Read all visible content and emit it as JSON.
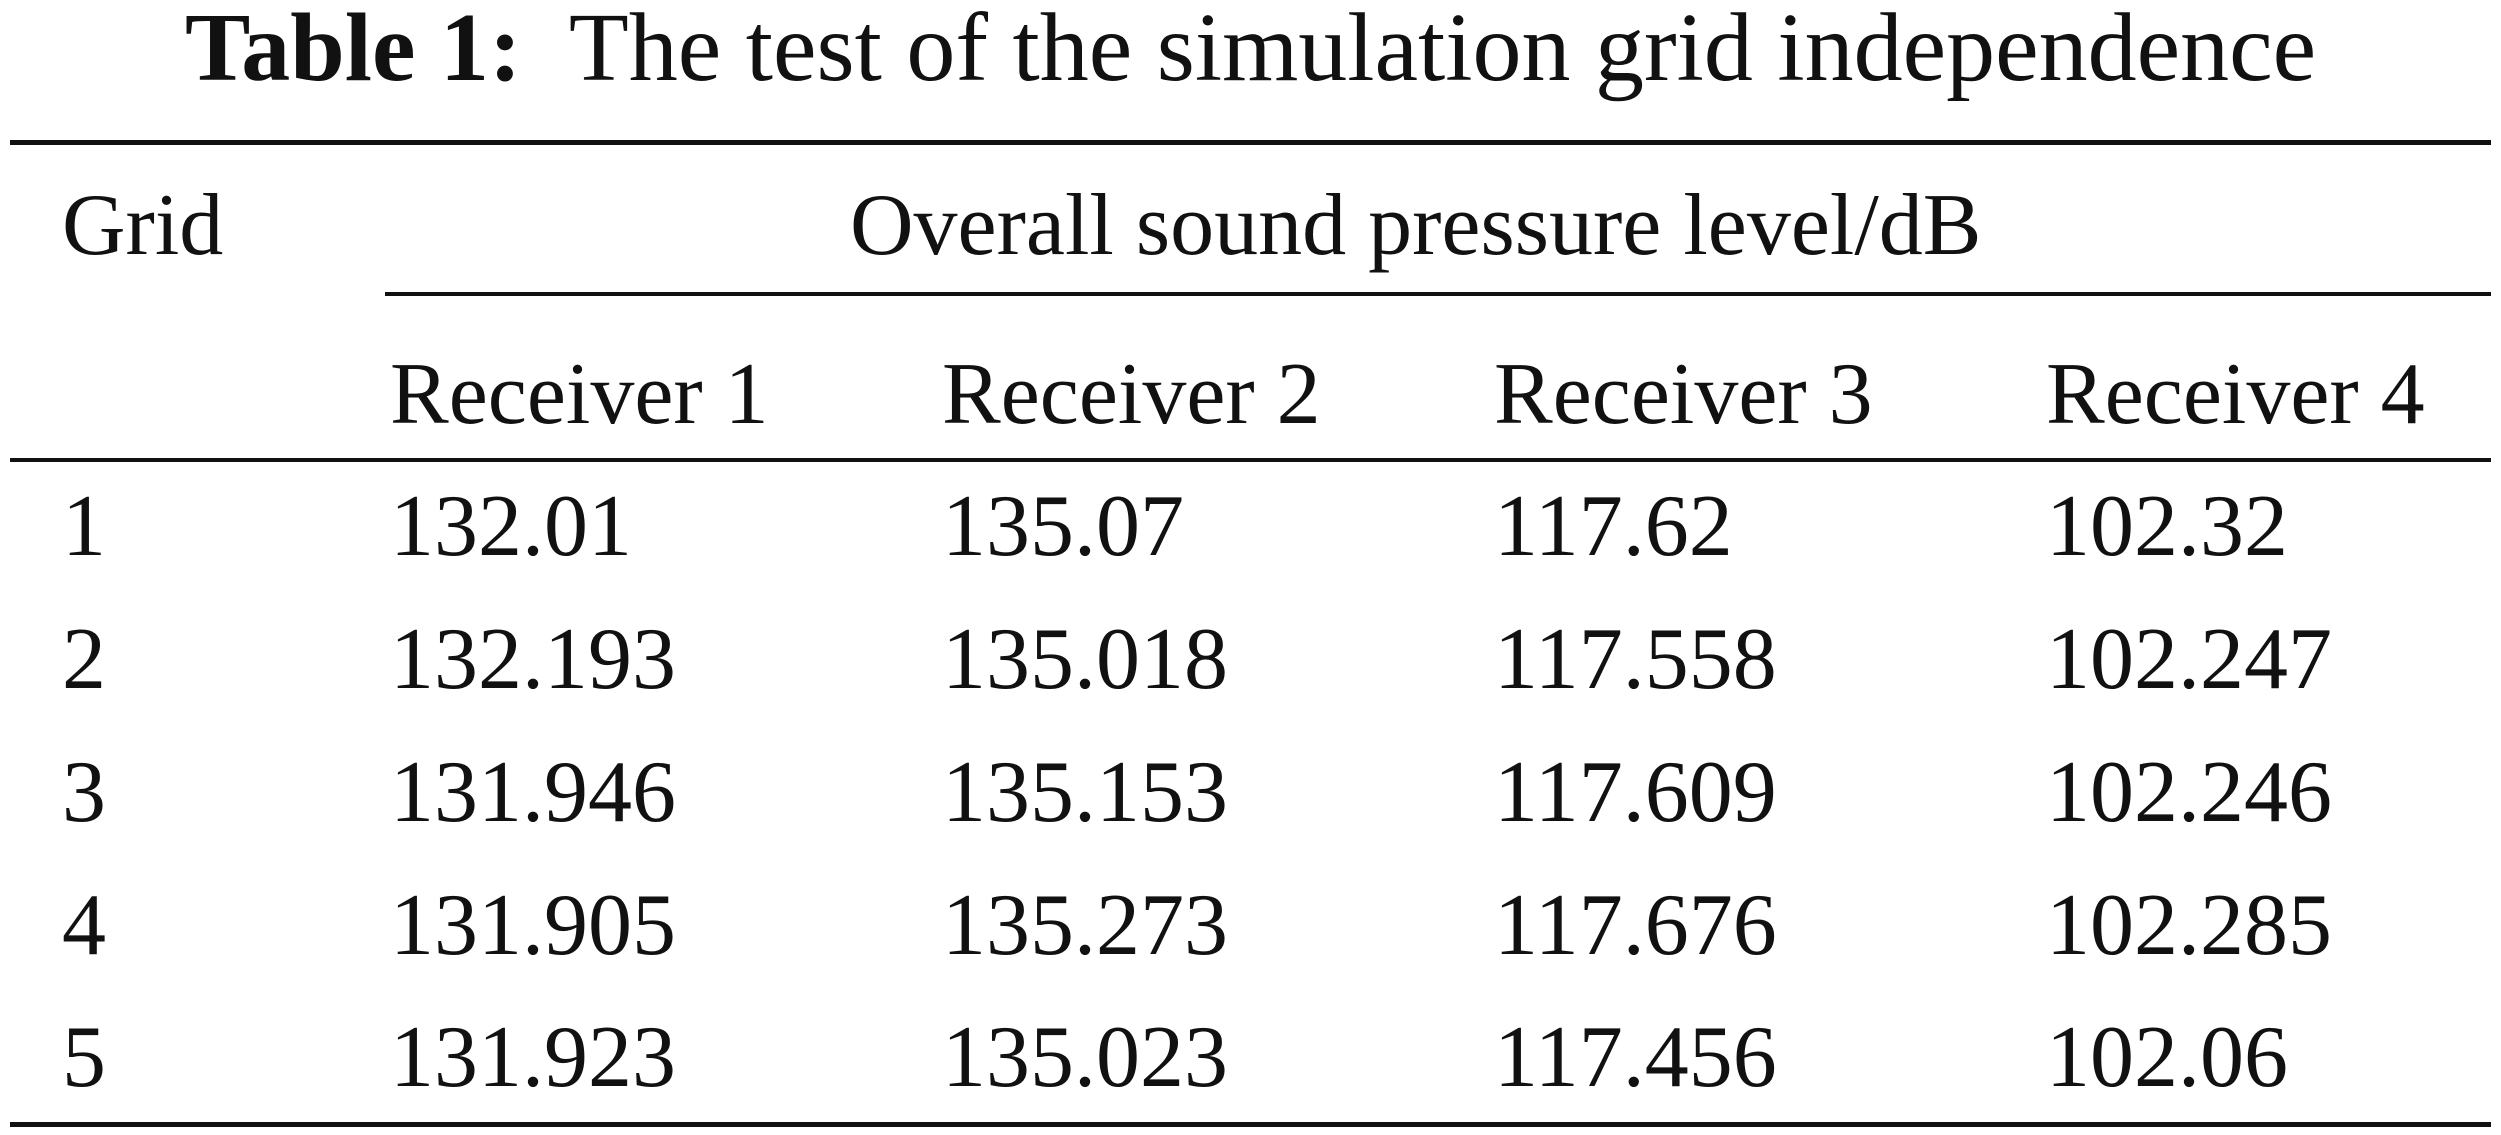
{
  "caption": {
    "label": "Table 1:",
    "text": "The test of the simulation grid independence"
  },
  "table": {
    "row_header": "Grid",
    "group_header": "Overall sound pressure level/dB",
    "columns": [
      "Receiver 1",
      "Receiver 2",
      "Receiver 3",
      "Receiver 4"
    ],
    "rows": [
      {
        "grid": "1",
        "values": [
          "132.01",
          "135.07",
          "117.62",
          "102.32"
        ]
      },
      {
        "grid": "2",
        "values": [
          "132.193",
          "135.018",
          "117.558",
          "102.247"
        ]
      },
      {
        "grid": "3",
        "values": [
          "131.946",
          "135.153",
          "117.609",
          "102.246"
        ]
      },
      {
        "grid": "4",
        "values": [
          "131.905",
          "135.273",
          "117.676",
          "102.285"
        ]
      },
      {
        "grid": "5",
        "values": [
          "131.923",
          "135.023",
          "117.456",
          "102.06"
        ]
      }
    ]
  }
}
